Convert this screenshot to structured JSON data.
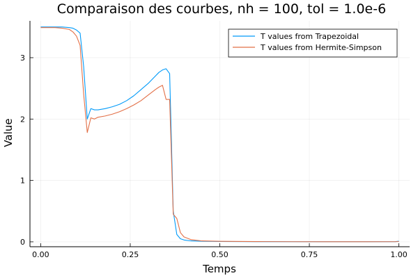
{
  "chart_data": {
    "type": "line",
    "title": "Comparaison des courbes, nh = 100, tol = 1.0e-6",
    "xlabel": "Temps",
    "ylabel": "Value",
    "xlim": [
      -0.03,
      1.03
    ],
    "ylim": [
      -0.08,
      3.6
    ],
    "xticks": [
      0.0,
      0.25,
      0.5,
      0.75,
      1.0
    ],
    "xtick_labels": [
      "0.00",
      "0.25",
      "0.50",
      "0.75",
      "1.00"
    ],
    "yticks": [
      0,
      1,
      2,
      3
    ],
    "ytick_labels": [
      "0",
      "1",
      "2",
      "3"
    ],
    "grid": true,
    "legend_position": "top-right",
    "series": [
      {
        "name": "T values from Trapezoidal",
        "color": "#009af9",
        "x": [
          0.0,
          0.02,
          0.04,
          0.06,
          0.08,
          0.09,
          0.1,
          0.11,
          0.12,
          0.13,
          0.14,
          0.15,
          0.16,
          0.18,
          0.2,
          0.22,
          0.24,
          0.26,
          0.28,
          0.3,
          0.32,
          0.33,
          0.34,
          0.35,
          0.36,
          0.37,
          0.38,
          0.39,
          0.4,
          0.42,
          0.45,
          0.5,
          0.6,
          0.7,
          0.8,
          0.9,
          0.99,
          1.0
        ],
        "y": [
          3.5,
          3.5,
          3.5,
          3.5,
          3.49,
          3.48,
          3.45,
          3.4,
          2.85,
          2.0,
          2.17,
          2.15,
          2.15,
          2.17,
          2.2,
          2.24,
          2.3,
          2.38,
          2.48,
          2.58,
          2.7,
          2.76,
          2.8,
          2.82,
          2.74,
          0.5,
          0.12,
          0.05,
          0.03,
          0.015,
          0.01,
          0.005,
          0.003,
          0.002,
          0.001,
          0.001,
          0.003,
          0.01
        ]
      },
      {
        "name": "T values from Hermite-Simpson",
        "color": "#e26f46",
        "x": [
          0.0,
          0.02,
          0.04,
          0.06,
          0.08,
          0.09,
          0.1,
          0.11,
          0.12,
          0.13,
          0.14,
          0.15,
          0.16,
          0.18,
          0.2,
          0.22,
          0.24,
          0.26,
          0.28,
          0.3,
          0.32,
          0.33,
          0.34,
          0.35,
          0.36,
          0.37,
          0.38,
          0.39,
          0.4,
          0.42,
          0.45,
          0.5,
          0.6,
          0.7,
          0.8,
          0.9,
          0.99,
          1.0
        ],
        "y": [
          3.49,
          3.49,
          3.49,
          3.48,
          3.46,
          3.42,
          3.35,
          3.2,
          2.4,
          1.78,
          2.02,
          2.0,
          2.03,
          2.05,
          2.08,
          2.12,
          2.17,
          2.23,
          2.3,
          2.39,
          2.48,
          2.52,
          2.55,
          2.32,
          2.32,
          0.45,
          0.38,
          0.15,
          0.08,
          0.035,
          0.015,
          0.008,
          0.004,
          0.002,
          0.001,
          0.001,
          0.002,
          0.005
        ]
      }
    ]
  }
}
